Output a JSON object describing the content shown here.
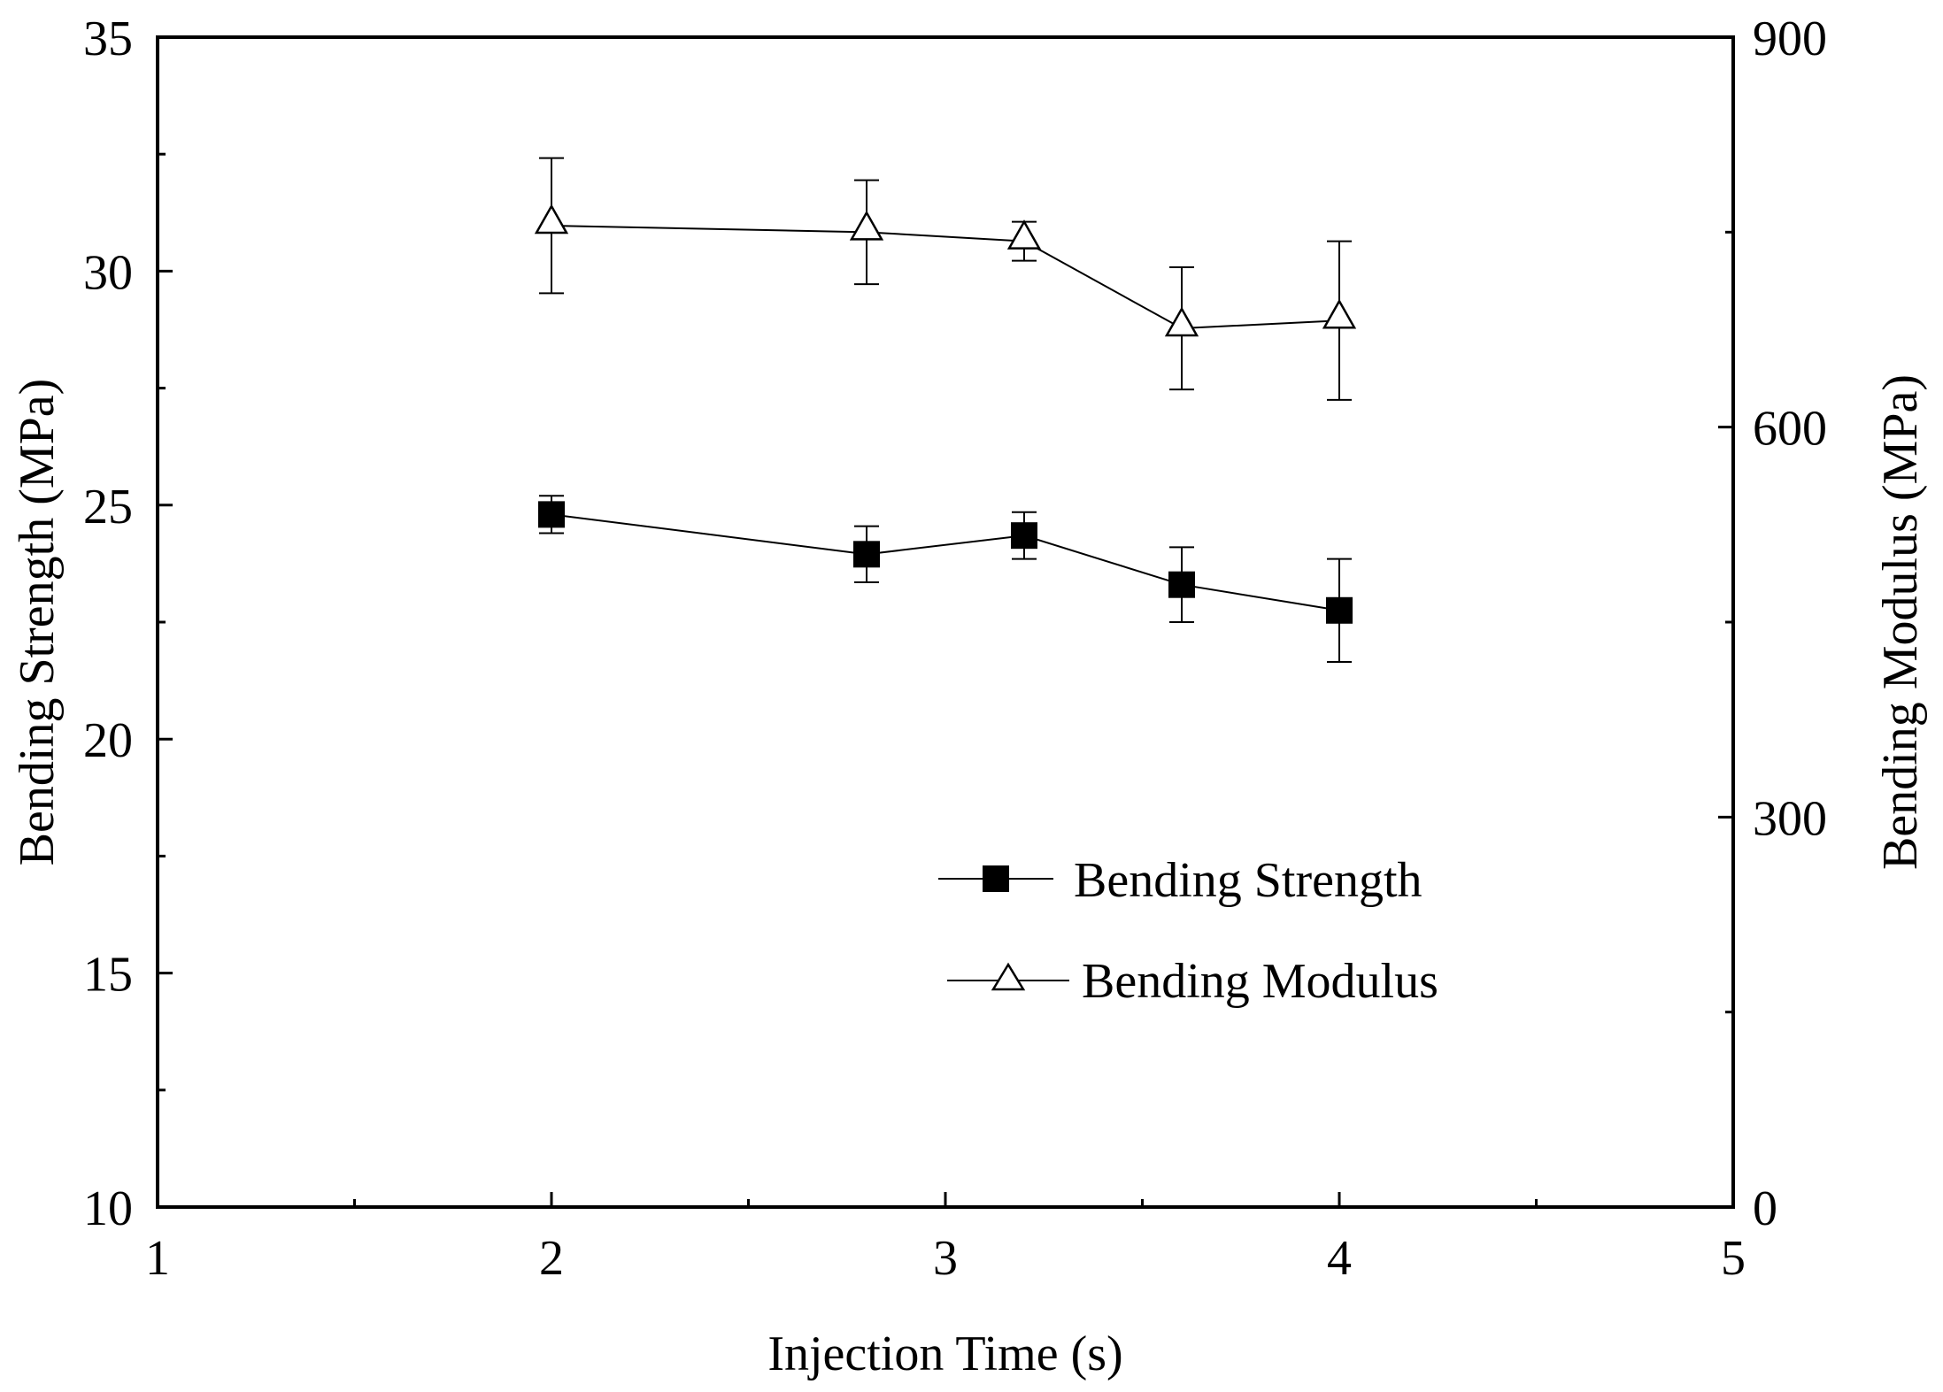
{
  "chart_data": {
    "type": "line",
    "title": "",
    "xlabel": "Injection Time (s)",
    "ylabel": "Bending Strength (MPa)",
    "y2label": "Bending Modulus (MPa)",
    "xlim": [
      1,
      5
    ],
    "ylim": [
      10,
      35
    ],
    "y2lim": [
      0,
      900
    ],
    "grid": false,
    "legend_position": "lower-right",
    "x_ticks": [
      1,
      2,
      3,
      4,
      5
    ],
    "x_tick_labels": [
      "1",
      "2",
      "3",
      "4",
      "5"
    ],
    "y_ticks": [
      10,
      15,
      20,
      25,
      30,
      35
    ],
    "y_tick_labels": [
      "10",
      "15",
      "20",
      "25",
      "30",
      "35"
    ],
    "y2_ticks": [
      0,
      300,
      600,
      900
    ],
    "y2_tick_labels": [
      "0",
      "300",
      "600",
      "900"
    ],
    "series": [
      {
        "name": "Bending Strength",
        "axis": "left",
        "marker": "filled-square",
        "x": [
          2.0,
          2.8,
          3.2,
          3.6,
          4.0
        ],
        "values": [
          24.8,
          23.95,
          24.35,
          23.3,
          22.75
        ],
        "error": [
          0.4,
          0.6,
          0.5,
          0.8,
          1.1
        ]
      },
      {
        "name": "Bending Modulus",
        "axis": "right",
        "marker": "open-triangle",
        "x": [
          2.0,
          2.8,
          3.2,
          3.6,
          4.0
        ],
        "values": [
          755,
          750,
          743,
          676,
          682
        ],
        "error": [
          52,
          40,
          15,
          47,
          61
        ]
      }
    ]
  }
}
